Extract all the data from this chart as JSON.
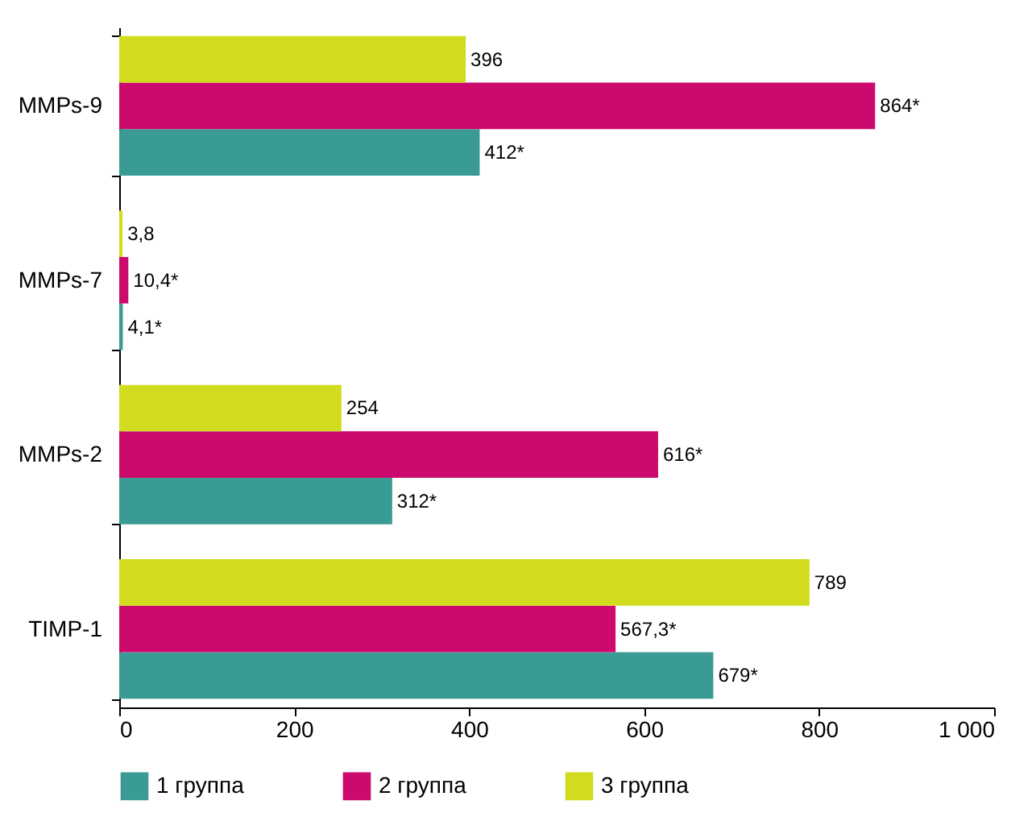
{
  "chart_data": {
    "type": "bar",
    "orientation": "horizontal",
    "categories": [
      "MMPs-9",
      "MMPs-7",
      "MMPs-2",
      "TIMP-1"
    ],
    "series": [
      {
        "name": "1 группа",
        "color": "#3a9a94",
        "values": [
          412,
          4.1,
          312,
          679
        ],
        "value_labels": [
          "412*",
          "4,1*",
          "312*",
          "679*"
        ]
      },
      {
        "name": "2 группа",
        "color": "#cc0a6e",
        "values": [
          864,
          10.4,
          616,
          567.3
        ],
        "value_labels": [
          "864*",
          "10,4*",
          "616*",
          "567,3*"
        ]
      },
      {
        "name": "3 группа",
        "color": "#d2dc1e",
        "values": [
          396,
          3.8,
          254,
          789
        ],
        "value_labels": [
          "396",
          "3,8",
          "254",
          "789"
        ]
      }
    ],
    "xlim": [
      0,
      1000
    ],
    "xticks": [
      0,
      200,
      400,
      600,
      800,
      {
        "value": 1000,
        "label": "1 000"
      }
    ],
    "grid": false,
    "legend": "bottom"
  }
}
